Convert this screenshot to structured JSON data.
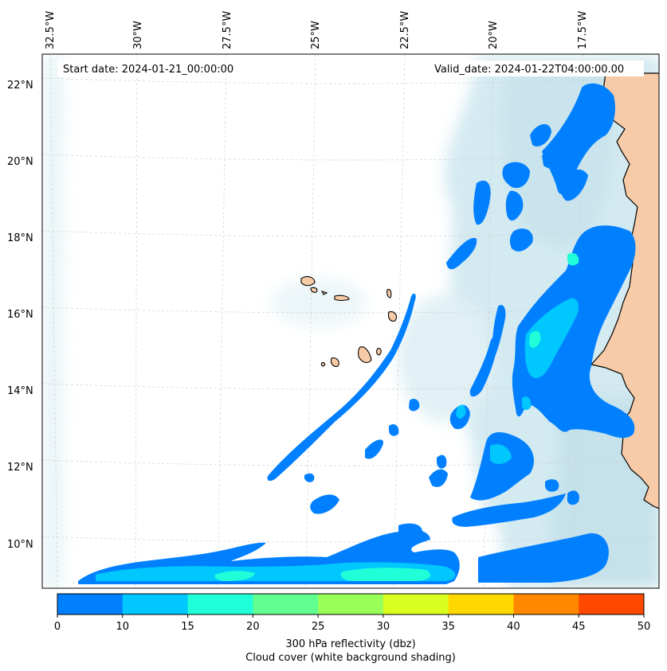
{
  "map": {
    "start_date_text": "Start date: 2024-01-21_00:00:00",
    "valid_date_text": "Valid_date: 2024-01-22T04:00:00.00",
    "lon_labels": [
      "32.5°W",
      "30°W",
      "27.5°W",
      "25°W",
      "22.5°W",
      "20°W",
      "17.5°W"
    ],
    "lat_labels": [
      "22°N",
      "20°N",
      "18°N",
      "16°N",
      "14°N",
      "12°N",
      "10°N"
    ],
    "colors": {
      "land": "#f7cba7",
      "cloud": "#bfe0ea",
      "coast": "#000000",
      "grid": "#cccccc"
    }
  },
  "colorbar": {
    "ticks": [
      "0",
      "10",
      "15",
      "20",
      "25",
      "30",
      "35",
      "40",
      "45",
      "50"
    ],
    "colors": [
      "#0080ff",
      "#00c8ff",
      "#20ffd8",
      "#60ff90",
      "#98ff58",
      "#d8ff20",
      "#ffd800",
      "#ff8800",
      "#ff4800"
    ],
    "label_line1": "300 hPa reflectivity (dbz)",
    "label_line2": "Cloud cover (white background shading)"
  }
}
